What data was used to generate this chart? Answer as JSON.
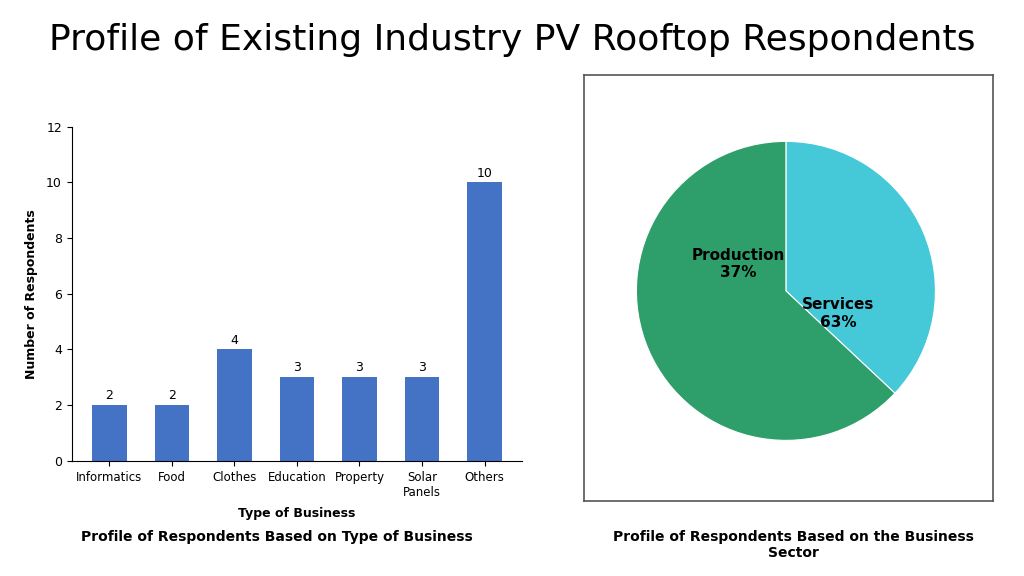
{
  "title": "Profile of Existing Industry PV Rooftop Respondents",
  "title_fontsize": 26,
  "title_fontweight": "normal",
  "background_color": "#ffffff",
  "bar_categories": [
    "Informatics",
    "Food",
    "Clothes",
    "Education",
    "Property",
    "Solar\nPanels",
    "Others"
  ],
  "bar_values": [
    2,
    2,
    4,
    3,
    3,
    3,
    10
  ],
  "bar_color": "#4472C4",
  "bar_xlabel": "Type of Business",
  "bar_ylabel": "Number of Respondents",
  "bar_ylim": [
    0,
    12
  ],
  "bar_yticks": [
    0,
    2,
    4,
    6,
    8,
    10,
    12
  ],
  "bar_subtitle": "Profile of Respondents Based on Type of Business",
  "pie_sizes": [
    37,
    63
  ],
  "pie_colors": [
    "#45C8D8",
    "#2E9E6B"
  ],
  "pie_subtitle": "Profile of Respondents Based on the Business\nSector",
  "pie_label_fontsize": 11,
  "pie_label_fontweight": "bold",
  "prod_label": "Production\n37%",
  "serv_label": "Services\n63%"
}
